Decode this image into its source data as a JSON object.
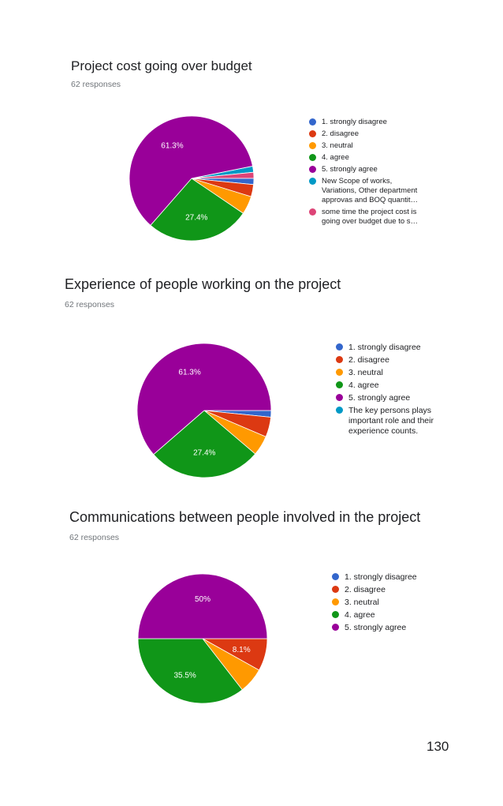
{
  "page_number": "130",
  "chart_data": [
    {
      "type": "pie",
      "title": "Project cost going over budget",
      "subtitle": "62 responses",
      "legend": [
        "1. strongly disagree",
        "2. disagree",
        "3. neutral",
        "4. agree",
        "5. strongly agree",
        "New Scope of works, Variations, Other department approvas and BOQ quantit…",
        "some time the project cost is going over budget due to s…"
      ],
      "values": [
        1.6,
        3.2,
        4.8,
        27.4,
        61.3,
        1.6,
        1.6
      ],
      "colors": [
        "#3366cc",
        "#dc3912",
        "#ff9900",
        "#109618",
        "#990099",
        "#0099c6",
        "#dd4477"
      ],
      "data_labels": [
        "",
        "",
        "",
        "27.4%",
        "61.3%",
        "",
        ""
      ],
      "legend_position": "right"
    },
    {
      "type": "pie",
      "title": "Experience of people working on the project",
      "subtitle": "62 responses",
      "legend": [
        "1. strongly disagree",
        "2. disagree",
        "3. neutral",
        "4. agree",
        "5. strongly agree",
        "The key persons plays important role and their experience counts."
      ],
      "values": [
        1.6,
        4.8,
        4.8,
        27.4,
        61.3,
        0
      ],
      "colors": [
        "#3366cc",
        "#dc3912",
        "#ff9900",
        "#109618",
        "#990099",
        "#0099c6"
      ],
      "data_labels": [
        "",
        "",
        "",
        "27.4%",
        "61.3%",
        ""
      ],
      "legend_position": "right"
    },
    {
      "type": "pie",
      "title": "Communications between people involved in the project",
      "subtitle": "62 responses",
      "legend": [
        "1. strongly disagree",
        "2. disagree",
        "3. neutral",
        "4. agree",
        "5. strongly agree"
      ],
      "values": [
        0,
        8.1,
        6.4,
        35.5,
        50
      ],
      "colors": [
        "#3366cc",
        "#dc3912",
        "#ff9900",
        "#109618",
        "#990099"
      ],
      "data_labels": [
        "",
        "8.1%",
        "",
        "35.5%",
        "50%"
      ],
      "legend_position": "right"
    }
  ]
}
